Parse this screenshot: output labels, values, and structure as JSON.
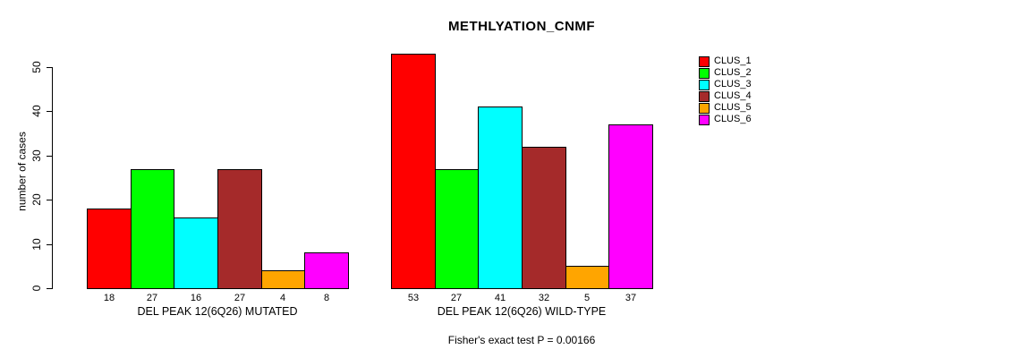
{
  "chart_data": {
    "type": "bar",
    "title": "METHLYATION_CNMF",
    "ylabel": "number of cases",
    "footnote": "Fisher's exact test P = 0.00166",
    "ylim": [
      0,
      53
    ],
    "yticks": [
      0,
      10,
      20,
      30,
      40,
      50
    ],
    "grid": false,
    "legend_position": "top-right",
    "series": [
      {
        "name": "CLUS_1",
        "color": "#FF0000"
      },
      {
        "name": "CLUS_2",
        "color": "#00FF00"
      },
      {
        "name": "CLUS_3",
        "color": "#00FFFF"
      },
      {
        "name": "CLUS_4",
        "color": "#A52A2A"
      },
      {
        "name": "CLUS_5",
        "color": "#FFA500"
      },
      {
        "name": "CLUS_6",
        "color": "#FF00FF"
      }
    ],
    "groups": [
      {
        "label": "DEL PEAK 12(6Q26) MUTATED",
        "values": [
          18,
          27,
          16,
          27,
          4,
          8
        ]
      },
      {
        "label": "DEL PEAK 12(6Q26) WILD-TYPE",
        "values": [
          53,
          27,
          41,
          32,
          5,
          37
        ]
      }
    ]
  }
}
